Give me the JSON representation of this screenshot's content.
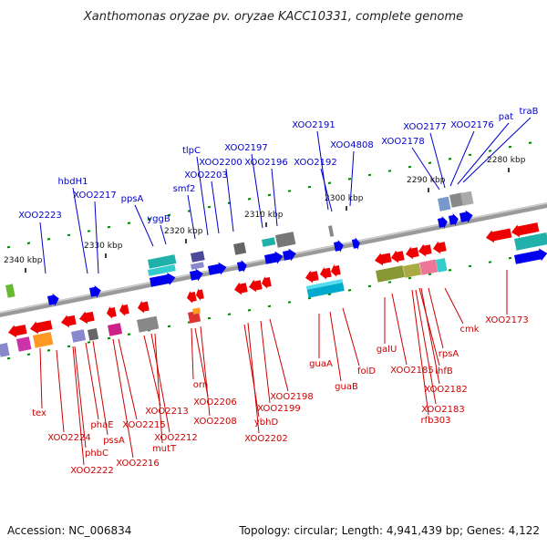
{
  "title": "Xanthomonas oryzae pv. oryzae KACC10331, complete genome",
  "accession": "Accession: NC_006834",
  "summary": "Topology: circular; Length: 4,941,439 bp; Genes: 4,122",
  "colors": {
    "forward": "#0000cc",
    "reverse": "#cc0000",
    "backbone": "#808080",
    "ticks": "#008000"
  },
  "scale_labels": [
    "2340 kbp",
    "2330 kbp",
    "2320 kbp",
    "2310 kbp",
    "2300 kbp",
    "2290 kbp",
    "2280 kbp"
  ],
  "forward_labels": [
    "XOO2223",
    "hbdH1",
    "XOO2217",
    "ppsA",
    "yggB",
    "smf2",
    "tlpC",
    "XOO2203",
    "XOO2200",
    "XOO2197",
    "XOO2196",
    "XOO2191",
    "XOO2192",
    "XOO4808",
    "XOO2178",
    "XOO2177",
    "XOO2176",
    "pat",
    "traB"
  ],
  "reverse_labels": [
    "tex",
    "XOO2224",
    "phbC",
    "XOO2222",
    "phaE",
    "pssA",
    "XOO2215",
    "XOO2216",
    "XOO2213",
    "XOO2212",
    "mutT",
    "orn",
    "XOO2206",
    "XOO2208",
    "ybhD",
    "XOO2202",
    "XOO2199",
    "XOO2198",
    "guaA",
    "guaB",
    "folD",
    "galU",
    "XOO2185",
    "ihfB",
    "XOO2182",
    "XOO2183",
    "rfb303",
    "rpsA",
    "cmk",
    "XOO2173"
  ]
}
